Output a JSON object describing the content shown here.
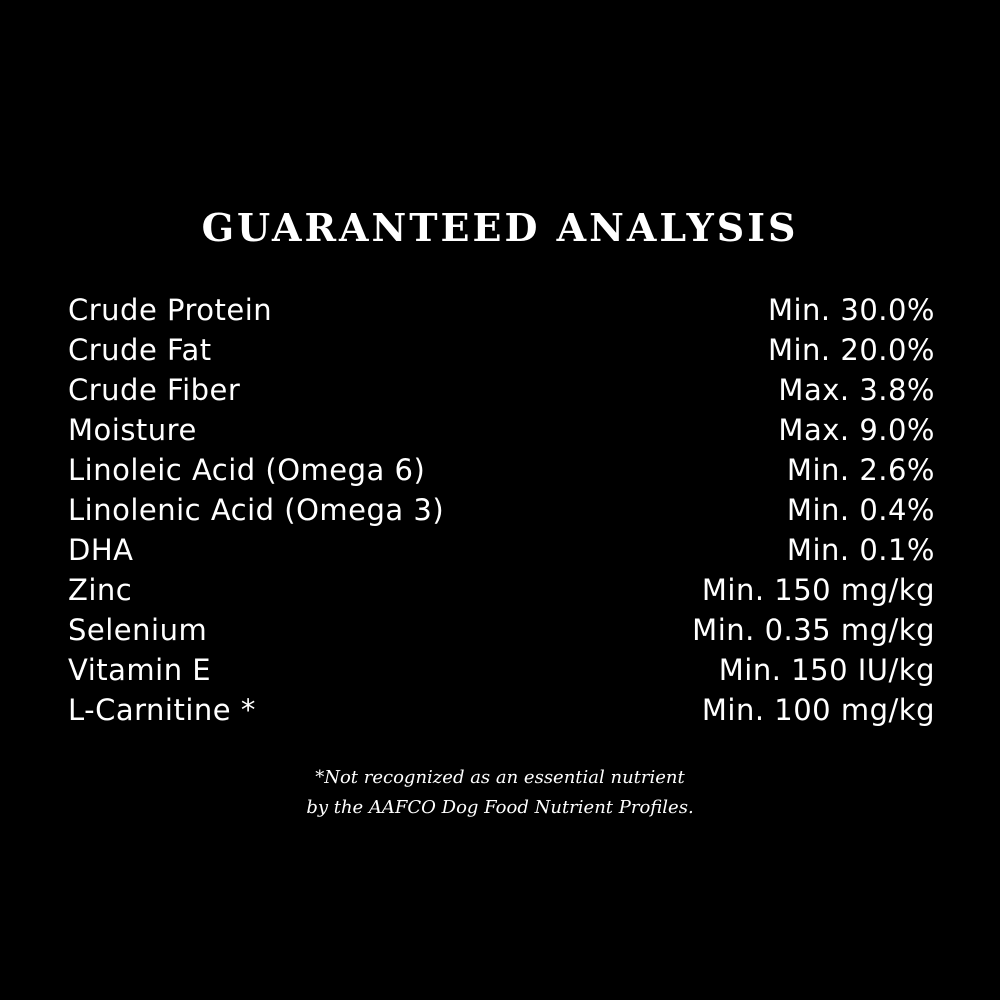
{
  "title": "GUARANTEED ANALYSIS",
  "rows": [
    {
      "nutrient": "Crude Protein",
      "value": "Min. 30.0%"
    },
    {
      "nutrient": "Crude Fat",
      "value": "Min. 20.0%"
    },
    {
      "nutrient": "Crude Fiber",
      "value": "Max. 3.8%"
    },
    {
      "nutrient": "Moisture",
      "value": "Max. 9.0%"
    },
    {
      "nutrient": "Linoleic Acid (Omega 6)",
      "value": "Min. 2.6%"
    },
    {
      "nutrient": "Linolenic Acid (Omega 3)",
      "value": "Min. 0.4%"
    },
    {
      "nutrient": "DHA",
      "value": "Min. 0.1%"
    },
    {
      "nutrient": "Zinc",
      "value": "Min. 150 mg/kg"
    },
    {
      "nutrient": "Selenium",
      "value": "Min. 0.35 mg/kg"
    },
    {
      "nutrient": "Vitamin E",
      "value": "Min. 150 IU/kg"
    },
    {
      "nutrient": "L-Carnitine *",
      "value": "Min. 100 mg/kg"
    }
  ],
  "footnote": {
    "line1": "*Not recognized as an essential nutrient",
    "line2": "by the AAFCO Dog Food Nutrient Profiles."
  }
}
